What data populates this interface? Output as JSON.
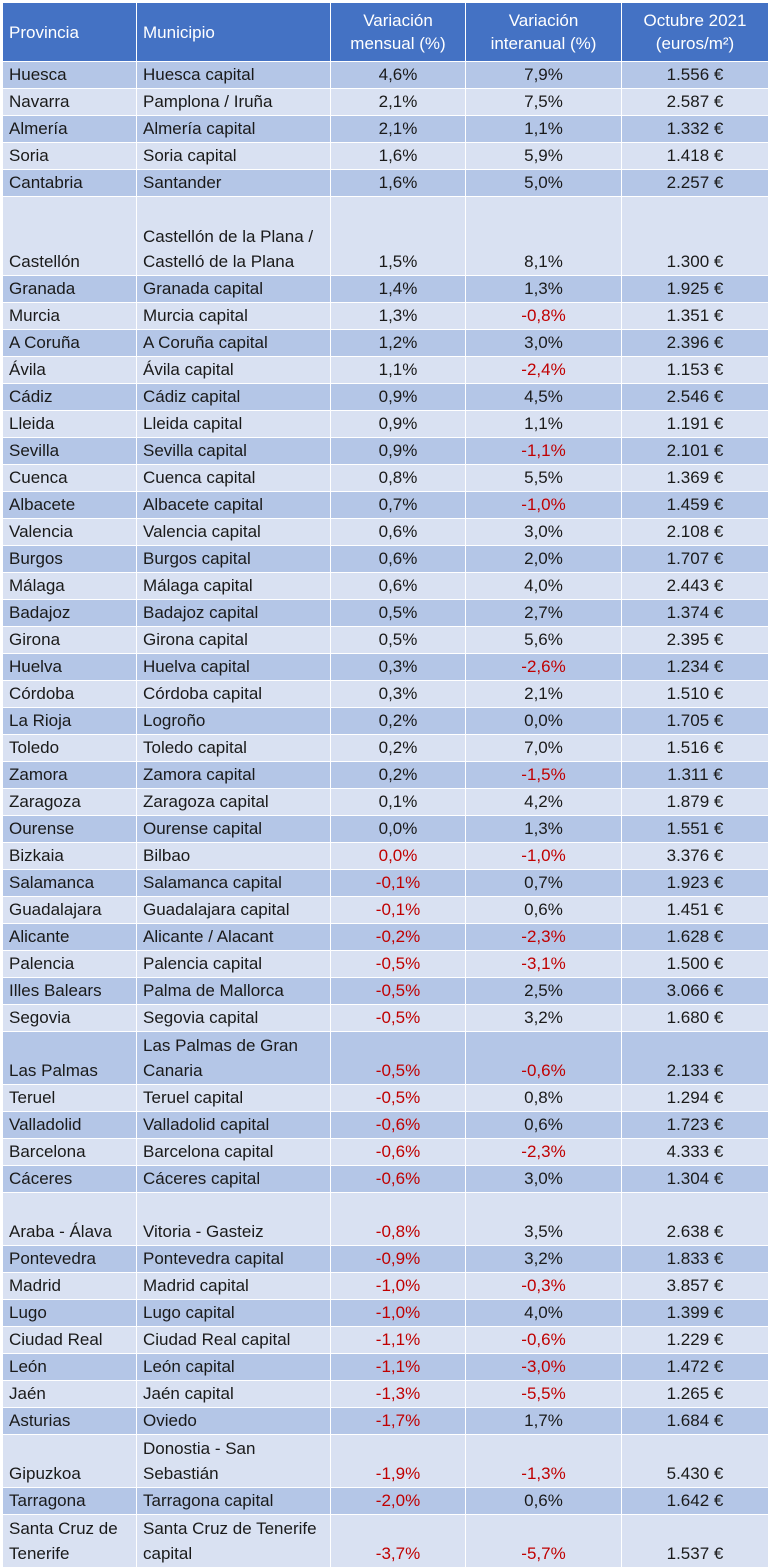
{
  "headers": {
    "provincia": "Provincia",
    "municipio": "Municipio",
    "mensual": "Variación mensual (%)",
    "interanual": "Variación interanual (%)",
    "octubre": "Octubre 2021 (euros/m²)"
  },
  "rows": [
    [
      "Huesca",
      "Huesca capital",
      "4,6%",
      "7,9%",
      "1.556 €"
    ],
    [
      "Navarra",
      "Pamplona / Iruña",
      "2,1%",
      "7,5%",
      "2.587 €"
    ],
    [
      "Almería",
      "Almería capital",
      "2,1%",
      "1,1%",
      "1.332 €"
    ],
    [
      "Soria",
      "Soria capital",
      "1,6%",
      "5,9%",
      "1.418 €"
    ],
    [
      "Cantabria",
      "Santander",
      "1,6%",
      "5,0%",
      "2.257 €"
    ],
    [
      "Castellón",
      "Castellón de la Plana / Castelló de la Plana",
      "1,5%",
      "8,1%",
      "1.300 €"
    ],
    [
      "Granada",
      "Granada capital",
      "1,4%",
      "1,3%",
      "1.925 €"
    ],
    [
      "Murcia",
      "Murcia capital",
      "1,3%",
      "-0,8%",
      "1.351 €"
    ],
    [
      "A Coruña",
      "A Coruña capital",
      "1,2%",
      "3,0%",
      "2.396 €"
    ],
    [
      "Ávila",
      "Ávila capital",
      "1,1%",
      "-2,4%",
      "1.153 €"
    ],
    [
      "Cádiz",
      "Cádiz capital",
      "0,9%",
      "4,5%",
      "2.546 €"
    ],
    [
      "Lleida",
      "Lleida capital",
      "0,9%",
      "1,1%",
      "1.191 €"
    ],
    [
      "Sevilla",
      "Sevilla capital",
      "0,9%",
      "-1,1%",
      "2.101 €"
    ],
    [
      "Cuenca",
      "Cuenca capital",
      "0,8%",
      "5,5%",
      "1.369 €"
    ],
    [
      "Albacete",
      "Albacete capital",
      "0,7%",
      "-1,0%",
      "1.459 €"
    ],
    [
      "Valencia",
      "Valencia capital",
      "0,6%",
      "3,0%",
      "2.108 €"
    ],
    [
      "Burgos",
      "Burgos capital",
      "0,6%",
      "2,0%",
      "1.707 €"
    ],
    [
      "Málaga",
      "Málaga capital",
      "0,6%",
      "4,0%",
      "2.443 €"
    ],
    [
      "Badajoz",
      "Badajoz capital",
      "0,5%",
      "2,7%",
      "1.374 €"
    ],
    [
      "Girona",
      "Girona capital",
      "0,5%",
      "5,6%",
      "2.395 €"
    ],
    [
      "Huelva",
      "Huelva capital",
      "0,3%",
      "-2,6%",
      "1.234 €"
    ],
    [
      "Córdoba",
      "Córdoba capital",
      "0,3%",
      "2,1%",
      "1.510 €"
    ],
    [
      "La Rioja",
      "Logroño",
      "0,2%",
      "0,0%",
      "1.705 €"
    ],
    [
      "Toledo",
      "Toledo capital",
      "0,2%",
      "7,0%",
      "1.516 €"
    ],
    [
      "Zamora",
      "Zamora capital",
      "0,2%",
      "-1,5%",
      "1.311 €"
    ],
    [
      "Zaragoza",
      "Zaragoza capital",
      "0,1%",
      "4,2%",
      "1.879 €"
    ],
    [
      "Ourense",
      "Ourense capital",
      "0,0%",
      "1,3%",
      "1.551 €"
    ],
    [
      "Bizkaia",
      "Bilbao",
      "0,0%",
      "-1,0%",
      "3.376 €"
    ],
    [
      "Salamanca",
      "Salamanca capital",
      "-0,1%",
      "0,7%",
      "1.923 €"
    ],
    [
      "Guadalajara",
      "Guadalajara capital",
      "-0,1%",
      "0,6%",
      "1.451 €"
    ],
    [
      "Alicante",
      "Alicante / Alacant",
      "-0,2%",
      "-2,3%",
      "1.628 €"
    ],
    [
      "Palencia",
      "Palencia capital",
      "-0,5%",
      "-3,1%",
      "1.500 €"
    ],
    [
      "Illes Balears",
      "Palma de Mallorca",
      "-0,5%",
      "2,5%",
      "3.066 €"
    ],
    [
      "Segovia",
      "Segovia capital",
      "-0,5%",
      "3,2%",
      "1.680 €"
    ],
    [
      "Las Palmas",
      "Las Palmas de Gran Canaria",
      "-0,5%",
      "-0,6%",
      "2.133 €"
    ],
    [
      "Teruel",
      "Teruel capital",
      "-0,5%",
      "0,8%",
      "1.294 €"
    ],
    [
      "Valladolid",
      "Valladolid capital",
      "-0,6%",
      "0,6%",
      "1.723 €"
    ],
    [
      "Barcelona",
      "Barcelona capital",
      "-0,6%",
      "-2,3%",
      "4.333 €"
    ],
    [
      "Cáceres",
      "Cáceres capital",
      "-0,6%",
      "3,0%",
      "1.304 €"
    ],
    [
      "Araba - Álava",
      "Vitoria - Gasteiz",
      "-0,8%",
      "3,5%",
      "2.638 €"
    ],
    [
      "Pontevedra",
      "Pontevedra capital",
      "-0,9%",
      "3,2%",
      "1.833 €"
    ],
    [
      "Madrid",
      "Madrid capital",
      "-1,0%",
      "-0,3%",
      "3.857 €"
    ],
    [
      "Lugo",
      "Lugo capital",
      "-1,0%",
      "4,0%",
      "1.399 €"
    ],
    [
      "Ciudad Real",
      "Ciudad Real capital",
      "-1,1%",
      "-0,6%",
      "1.229 €"
    ],
    [
      "León",
      "León capital",
      "-1,1%",
      "-3,0%",
      "1.472 €"
    ],
    [
      "Jaén",
      "Jaén capital",
      "-1,3%",
      "-5,5%",
      "1.265 €"
    ],
    [
      "Asturias",
      "Oviedo",
      "-1,7%",
      "1,7%",
      "1.684 €"
    ],
    [
      "Gipuzkoa",
      "Donostia - San Sebastián",
      "-1,9%",
      "-1,3%",
      "5.430 €"
    ],
    [
      "Tarragona",
      "Tarragona capital",
      "-2,0%",
      "0,6%",
      "1.642 €"
    ],
    [
      "Santa Cruz de Tenerife",
      "Santa Cruz de Tenerife capital",
      "-3,7%",
      "-5,7%",
      "1.537 €"
    ]
  ],
  "negative_color": "#c00000",
  "header_color": "#4472c4",
  "band_colors": [
    "#b4c6e7",
    "#d9e1f2"
  ]
}
